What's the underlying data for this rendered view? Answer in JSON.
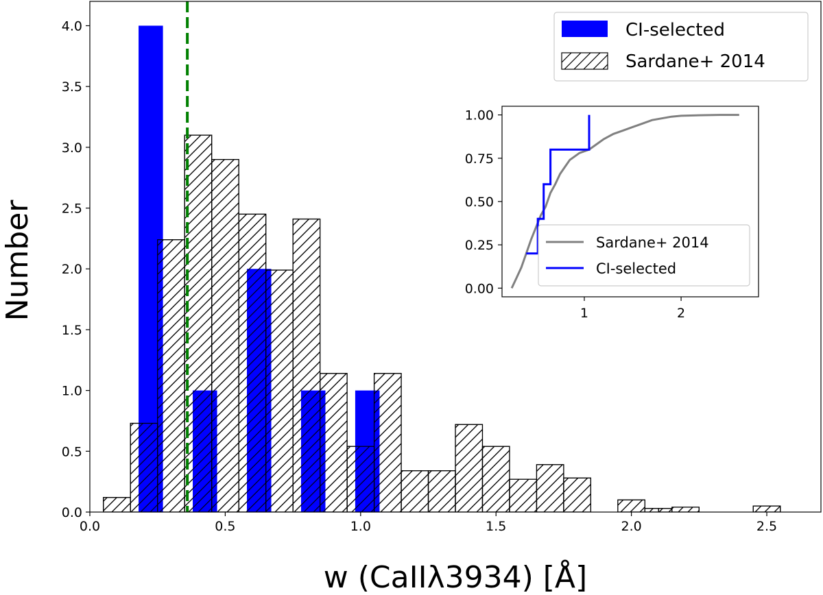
{
  "chart_data": {
    "type": "bar",
    "title": "",
    "xlabel": "w (CaIIλ3934) [Å]",
    "ylabel": "Number",
    "xlim": [
      0.0,
      2.7
    ],
    "ylim": [
      0.0,
      4.2
    ],
    "xticks": [
      0.0,
      0.5,
      1.0,
      1.5,
      2.0,
      2.5
    ],
    "xtick_labels": [
      "0.0",
      "0.5",
      "1.0",
      "1.5",
      "2.0",
      "2.5"
    ],
    "yticks": [
      0.0,
      0.5,
      1.0,
      1.5,
      2.0,
      2.5,
      3.0,
      3.5,
      4.0
    ],
    "ytick_labels": [
      "0.0",
      "0.5",
      "1.0",
      "1.5",
      "2.0",
      "2.5",
      "3.0",
      "3.5",
      "4.0"
    ],
    "legend_position": "top-right",
    "series": [
      {
        "name": "CI-selected",
        "color": "#0000ff",
        "style": "filled",
        "bins": [
          {
            "x0": 0.18,
            "x1": 0.27,
            "value": 4.0
          },
          {
            "x0": 0.38,
            "x1": 0.47,
            "value": 1.0
          },
          {
            "x0": 0.58,
            "x1": 0.67,
            "value": 2.0
          },
          {
            "x0": 0.78,
            "x1": 0.87,
            "value": 1.0
          },
          {
            "x0": 0.98,
            "x1": 1.07,
            "value": 1.0
          }
        ]
      },
      {
        "name": "Sardane+ 2014",
        "color": "#000000",
        "style": "hatched",
        "bins": [
          {
            "x0": 0.05,
            "x1": 0.15,
            "value": 0.12
          },
          {
            "x0": 0.15,
            "x1": 0.25,
            "value": 0.73
          },
          {
            "x0": 0.25,
            "x1": 0.35,
            "value": 2.24
          },
          {
            "x0": 0.35,
            "x1": 0.45,
            "value": 3.1
          },
          {
            "x0": 0.45,
            "x1": 0.55,
            "value": 2.9
          },
          {
            "x0": 0.55,
            "x1": 0.65,
            "value": 2.45
          },
          {
            "x0": 0.65,
            "x1": 0.75,
            "value": 1.99
          },
          {
            "x0": 0.75,
            "x1": 0.85,
            "value": 2.41
          },
          {
            "x0": 0.85,
            "x1": 0.95,
            "value": 1.14
          },
          {
            "x0": 0.95,
            "x1": 1.05,
            "value": 0.54
          },
          {
            "x0": 1.05,
            "x1": 1.15,
            "value": 1.14
          },
          {
            "x0": 1.15,
            "x1": 1.25,
            "value": 0.34
          },
          {
            "x0": 1.25,
            "x1": 1.35,
            "value": 0.34
          },
          {
            "x0": 1.35,
            "x1": 1.45,
            "value": 0.72
          },
          {
            "x0": 1.45,
            "x1": 1.55,
            "value": 0.54
          },
          {
            "x0": 1.55,
            "x1": 1.65,
            "value": 0.27
          },
          {
            "x0": 1.65,
            "x1": 1.75,
            "value": 0.39
          },
          {
            "x0": 1.75,
            "x1": 1.85,
            "value": 0.28
          },
          {
            "x0": 1.95,
            "x1": 2.05,
            "value": 0.1
          },
          {
            "x0": 2.05,
            "x1": 2.1,
            "value": 0.03
          },
          {
            "x0": 2.1,
            "x1": 2.15,
            "value": 0.03
          },
          {
            "x0": 2.15,
            "x1": 2.25,
            "value": 0.04
          },
          {
            "x0": 2.45,
            "x1": 2.55,
            "value": 0.05
          }
        ]
      }
    ],
    "vline": {
      "x": 0.36,
      "color": "#008000",
      "style": "dashed"
    },
    "inset": {
      "type": "line",
      "xlim": [
        0.15,
        2.8
      ],
      "ylim": [
        -0.05,
        1.05
      ],
      "xticks": [
        1,
        2
      ],
      "xtick_labels": [
        "1",
        "2"
      ],
      "yticks": [
        0.0,
        0.25,
        0.5,
        0.75,
        1.0
      ],
      "ytick_labels": [
        "0.00",
        "0.25",
        "0.50",
        "0.75",
        "1.00"
      ],
      "legend_position": "bottom-center",
      "series": [
        {
          "name": "Sardane+ 2014",
          "color": "#808080",
          "x": [
            0.25,
            0.3,
            0.35,
            0.4,
            0.45,
            0.5,
            0.55,
            0.6,
            0.65,
            0.7,
            0.75,
            0.8,
            0.85,
            0.9,
            0.95,
            1.0,
            1.05,
            1.1,
            1.15,
            1.2,
            1.3,
            1.4,
            1.5,
            1.6,
            1.7,
            1.8,
            1.9,
            2.0,
            2.2,
            2.4,
            2.6
          ],
          "y": [
            0.0,
            0.06,
            0.12,
            0.2,
            0.28,
            0.35,
            0.42,
            0.47,
            0.55,
            0.6,
            0.66,
            0.7,
            0.74,
            0.76,
            0.78,
            0.79,
            0.8,
            0.82,
            0.84,
            0.86,
            0.89,
            0.91,
            0.93,
            0.95,
            0.97,
            0.98,
            0.99,
            0.995,
            0.998,
            1.0,
            1.0
          ]
        },
        {
          "name": "CI-selected",
          "color": "#0000ff",
          "x": [
            0.4,
            0.52,
            0.52,
            0.58,
            0.58,
            0.65,
            0.65,
            0.82,
            0.82,
            1.05,
            1.05
          ],
          "y": [
            0.2,
            0.2,
            0.4,
            0.4,
            0.6,
            0.6,
            0.8,
            0.8,
            0.8,
            0.8,
            1.0
          ]
        }
      ]
    }
  }
}
